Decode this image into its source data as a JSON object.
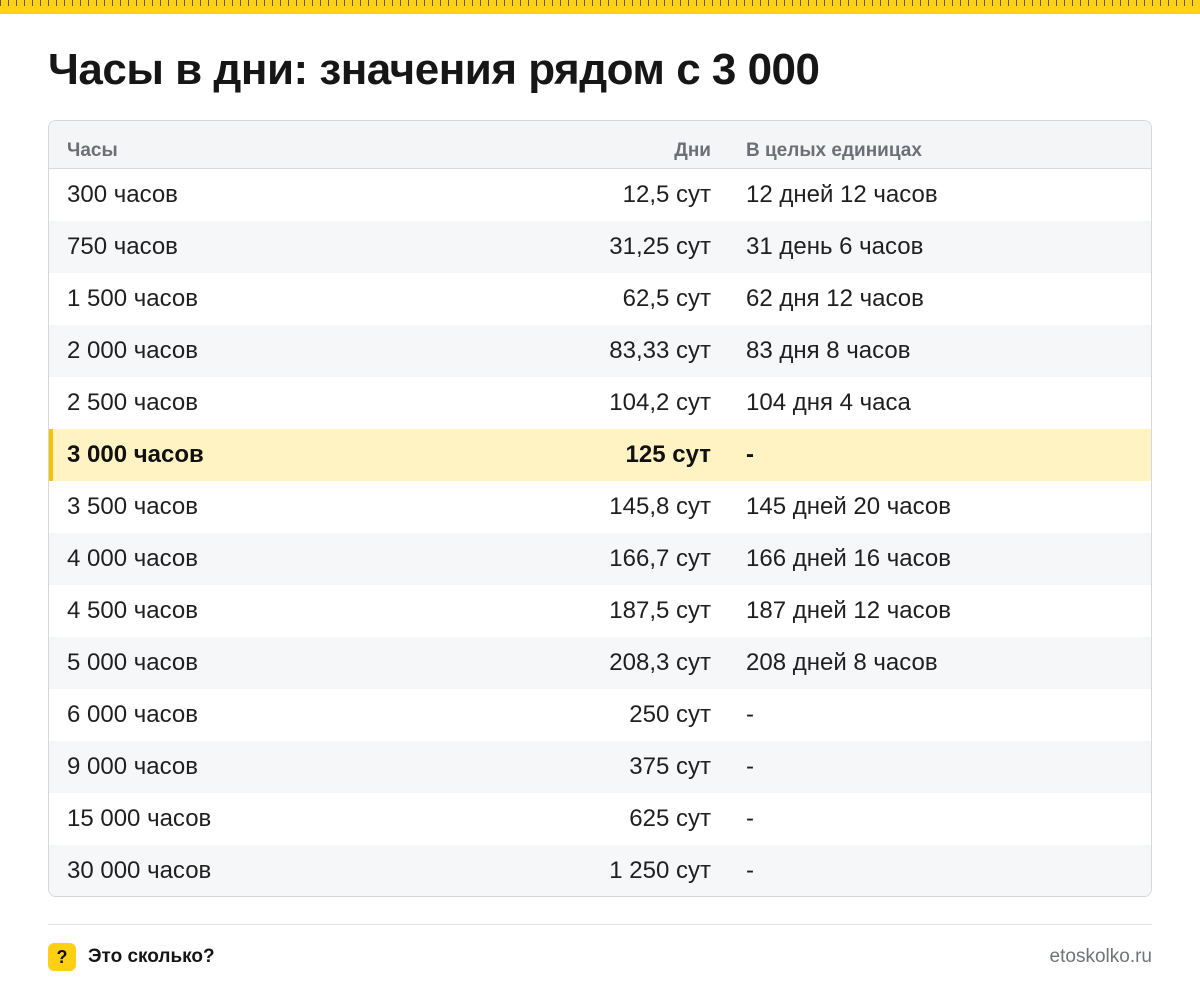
{
  "title": "Часы в дни: значения рядом с 3 000",
  "table": {
    "headers": [
      "Часы",
      "Дни",
      "В целых единицах"
    ],
    "rows": [
      {
        "hours": "300 часов",
        "days": "12,5 сут",
        "whole": "12 дней 12 часов",
        "highlight": false
      },
      {
        "hours": "750 часов",
        "days": "31,25 сут",
        "whole": "31 день 6 часов",
        "highlight": false
      },
      {
        "hours": "1 500 часов",
        "days": "62,5 сут",
        "whole": "62 дня 12 часов",
        "highlight": false
      },
      {
        "hours": "2 000 часов",
        "days": "83,33 сут",
        "whole": "83 дня 8 часов",
        "highlight": false
      },
      {
        "hours": "2 500 часов",
        "days": "104,2 сут",
        "whole": "104 дня 4 часа",
        "highlight": false
      },
      {
        "hours": "3 000 часов",
        "days": "125 сут",
        "whole": "-",
        "highlight": true
      },
      {
        "hours": "3 500 часов",
        "days": "145,8 сут",
        "whole": "145 дней 20 часов",
        "highlight": false
      },
      {
        "hours": "4 000 часов",
        "days": "166,7 сут",
        "whole": "166 дней 16 часов",
        "highlight": false
      },
      {
        "hours": "4 500 часов",
        "days": "187,5 сут",
        "whole": "187 дней 12 часов",
        "highlight": false
      },
      {
        "hours": "5 000 часов",
        "days": "208,3 сут",
        "whole": "208 дней 8 часов",
        "highlight": false
      },
      {
        "hours": "6 000 часов",
        "days": "250 сут",
        "whole": "-",
        "highlight": false
      },
      {
        "hours": "9 000 часов",
        "days": "375 сут",
        "whole": "-",
        "highlight": false
      },
      {
        "hours": "15 000 часов",
        "days": "625 сут",
        "whole": "-",
        "highlight": false
      },
      {
        "hours": "30 000 часов",
        "days": "1 250 сут",
        "whole": "-",
        "highlight": false
      }
    ]
  },
  "footer": {
    "badge": "?",
    "brand": "Это сколько?",
    "site": "etoskolko.ru"
  },
  "colors": {
    "accent": "#ffcf14",
    "highlight_row": "#fff3c4",
    "alt_row": "#f6f7f9"
  }
}
